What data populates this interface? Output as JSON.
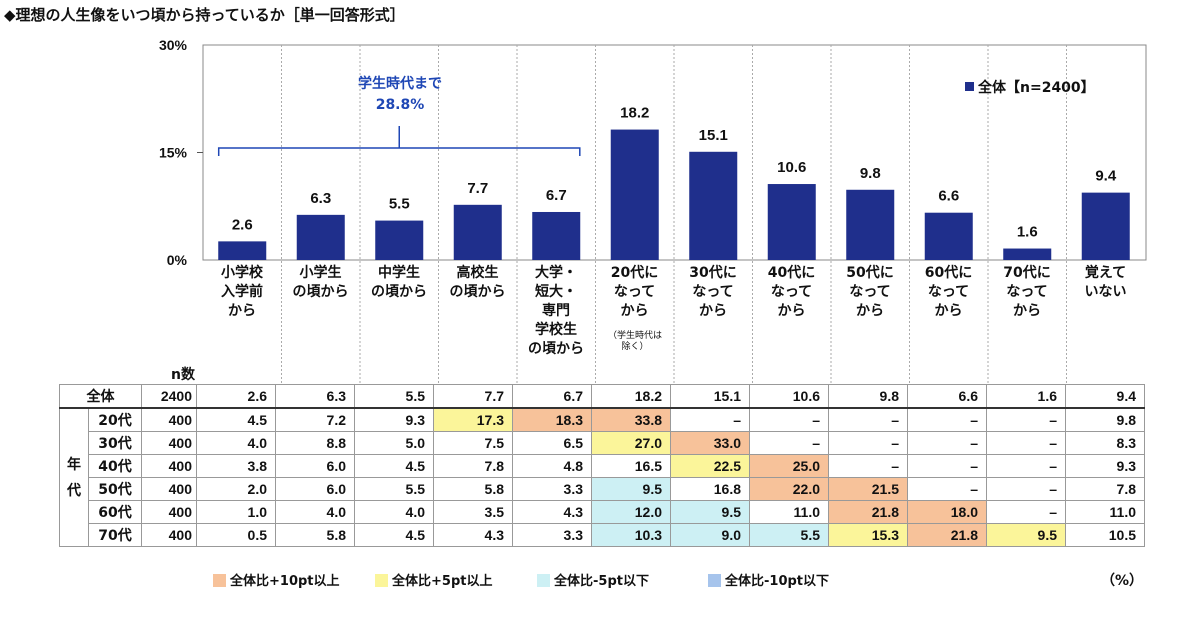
{
  "title": "◆理想の人生像をいつ頃から持っているか［単一回答形式］",
  "chart_data": {
    "type": "bar",
    "categories": [
      "小学校\n入学前\nから",
      "小学生\nの頃から",
      "中学生\nの頃から",
      "高校生\nの頃から",
      "大学・\n短大・\n専門\n学校生\nの頃から",
      "20代に\nなって\nから",
      "30代に\nなって\nから",
      "40代に\nなって\nから",
      "50代に\nなって\nから",
      "60代に\nなって\nから",
      "70代に\nなって\nから",
      "覚えて\nいない"
    ],
    "category_note": "（学生時代は\n除く）",
    "series": [
      {
        "name": "全体【n=2400】",
        "values": [
          2.6,
          6.3,
          5.5,
          7.7,
          6.7,
          18.2,
          15.1,
          10.6,
          9.8,
          6.6,
          1.6,
          9.4
        ]
      }
    ],
    "value_labels": [
      "2.6",
      "6.3",
      "5.5",
      "7.7",
      "6.7",
      "18.2",
      "15.1",
      "10.6",
      "9.8",
      "6.6",
      "1.6",
      "9.4"
    ],
    "ylim": [
      0,
      30
    ],
    "yticks": [
      "0%",
      "15%",
      "30%"
    ],
    "legend": "top-right",
    "color": "#1f2f8c",
    "annotation": {
      "text": "学生時代まで",
      "value": "28.8%"
    },
    "table": {
      "n_header": "n数",
      "group_label": "年代",
      "rows": [
        {
          "label": "全体",
          "n": "2400",
          "values": [
            "2.6",
            "6.3",
            "5.5",
            "7.7",
            "6.7",
            "18.2",
            "15.1",
            "10.6",
            "9.8",
            "6.6",
            "1.6",
            "9.4"
          ]
        },
        {
          "label": "20代",
          "n": "400",
          "values": [
            "4.5",
            "7.2",
            "9.3",
            "17.3",
            "18.3",
            "33.8",
            "–",
            "–",
            "–",
            "–",
            "–",
            "9.8"
          ],
          "highlight": [
            "",
            "",
            "",
            "h5",
            "h10",
            "h10",
            "",
            "",
            "",
            "",
            "",
            ""
          ]
        },
        {
          "label": "30代",
          "n": "400",
          "values": [
            "4.0",
            "8.8",
            "5.0",
            "7.5",
            "6.5",
            "27.0",
            "33.0",
            "–",
            "–",
            "–",
            "–",
            "8.3"
          ],
          "highlight": [
            "",
            "",
            "",
            "",
            "",
            "h5",
            "h10",
            "",
            "",
            "",
            "",
            ""
          ]
        },
        {
          "label": "40代",
          "n": "400",
          "values": [
            "3.8",
            "6.0",
            "4.5",
            "7.8",
            "4.8",
            "16.5",
            "22.5",
            "25.0",
            "–",
            "–",
            "–",
            "9.3"
          ],
          "highlight": [
            "",
            "",
            "",
            "",
            "",
            "",
            "h5",
            "h10",
            "",
            "",
            "",
            ""
          ]
        },
        {
          "label": "50代",
          "n": "400",
          "values": [
            "2.0",
            "6.0",
            "5.5",
            "5.8",
            "3.3",
            "9.5",
            "16.8",
            "22.0",
            "21.5",
            "–",
            "–",
            "7.8"
          ],
          "highlight": [
            "",
            "",
            "",
            "",
            "",
            "l5",
            "",
            "h10",
            "h10",
            "",
            "",
            ""
          ]
        },
        {
          "label": "60代",
          "n": "400",
          "values": [
            "1.0",
            "4.0",
            "4.0",
            "3.5",
            "4.3",
            "12.0",
            "9.5",
            "11.0",
            "21.8",
            "18.0",
            "–",
            "11.0"
          ],
          "highlight": [
            "",
            "",
            "",
            "",
            "",
            "l5",
            "l5",
            "",
            "h10",
            "h10",
            "",
            ""
          ]
        },
        {
          "label": "70代",
          "n": "400",
          "values": [
            "0.5",
            "5.8",
            "4.5",
            "4.3",
            "3.3",
            "10.3",
            "9.0",
            "5.5",
            "15.3",
            "21.8",
            "9.5",
            "10.5"
          ],
          "highlight": [
            "",
            "",
            "",
            "",
            "",
            "l5",
            "l5",
            "l5",
            "h5",
            "h10",
            "h5",
            ""
          ]
        }
      ]
    },
    "color_key": [
      {
        "label": "全体比+10pt以上",
        "color": "#f7c29a"
      },
      {
        "label": "全体比+5pt以上",
        "color": "#fbf59a"
      },
      {
        "label": "全体比-5pt以下",
        "color": "#cdf0f4"
      },
      {
        "label": "全体比-10pt以下",
        "color": "#a6c4ec"
      }
    ],
    "unit": "（%）"
  }
}
